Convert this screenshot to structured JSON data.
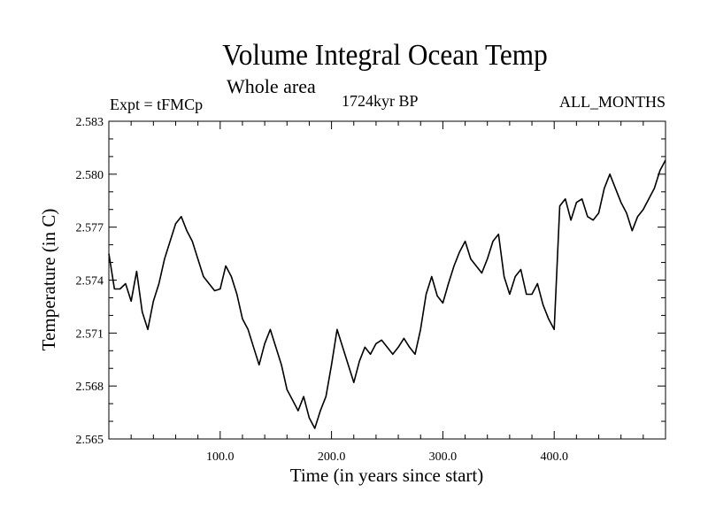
{
  "chart_data": {
    "type": "line",
    "title": "Volume Integral Ocean Temp",
    "subtitle": "Whole area",
    "left_label": "Expt = tFMCp",
    "center_label": "1724kyr BP",
    "right_label": "ALL_MONTHS",
    "xlabel": "Time (in years since start)",
    "ylabel": "Temperature (in C)",
    "xlim": [
      0,
      500
    ],
    "ylim": [
      2.565,
      2.583
    ],
    "x_ticks": [
      100,
      200,
      300,
      400
    ],
    "x_tick_labels": [
      "100.0",
      "200.0",
      "300.0",
      "400.0"
    ],
    "y_ticks": [
      2.565,
      2.568,
      2.571,
      2.574,
      2.577,
      2.58,
      2.583
    ],
    "y_tick_labels": [
      "2.565",
      "2.568",
      "2.571",
      "2.574",
      "2.577",
      "2.580",
      "2.583"
    ],
    "series": [
      {
        "name": "Volume Integral Ocean Temp",
        "x": [
          0,
          5,
          10,
          15,
          20,
          25,
          30,
          35,
          40,
          45,
          50,
          55,
          60,
          65,
          70,
          75,
          80,
          85,
          90,
          95,
          100,
          105,
          110,
          115,
          120,
          125,
          130,
          135,
          140,
          145,
          150,
          155,
          160,
          165,
          170,
          175,
          180,
          185,
          190,
          195,
          200,
          205,
          210,
          215,
          220,
          225,
          230,
          235,
          240,
          245,
          250,
          255,
          260,
          265,
          270,
          275,
          280,
          285,
          290,
          295,
          300,
          305,
          310,
          315,
          320,
          325,
          330,
          335,
          340,
          345,
          350,
          355,
          360,
          365,
          370,
          375,
          380,
          385,
          390,
          395,
          400,
          405,
          410,
          415,
          420,
          425,
          430,
          435,
          440,
          445,
          450,
          455,
          460,
          465,
          470,
          475,
          480,
          485,
          490,
          495,
          500
        ],
        "values": [
          2.5755,
          2.5735,
          2.5735,
          2.5738,
          2.5728,
          2.5745,
          2.5722,
          2.5712,
          2.5728,
          2.5738,
          2.5752,
          2.5762,
          2.5772,
          2.5776,
          2.5768,
          2.5762,
          2.5752,
          2.5742,
          2.5738,
          2.5734,
          2.5735,
          2.5748,
          2.5742,
          2.5732,
          2.5718,
          2.5712,
          2.5702,
          2.5692,
          2.5704,
          2.5712,
          2.5702,
          2.5692,
          2.5678,
          2.5672,
          2.5666,
          2.5674,
          2.5662,
          2.5656,
          2.5666,
          2.5674,
          2.5692,
          2.5712,
          2.5702,
          2.5692,
          2.5682,
          2.5694,
          2.5702,
          2.5698,
          2.5704,
          2.5706,
          2.5702,
          2.5698,
          2.5702,
          2.5707,
          2.5702,
          2.5698,
          2.5712,
          2.5732,
          2.5742,
          2.5731,
          2.5727,
          2.5738,
          2.5748,
          2.5756,
          2.5762,
          2.5752,
          2.5748,
          2.5744,
          2.5752,
          2.5762,
          2.5766,
          2.5742,
          2.5732,
          2.5742,
          2.5746,
          2.5732,
          2.5732,
          2.5738,
          2.5726,
          2.5718,
          2.5712,
          2.5782,
          2.5786,
          2.5774,
          2.5784,
          2.5786,
          2.5776,
          2.5774,
          2.5778,
          2.5792,
          2.58,
          2.5792,
          2.5784,
          2.5778,
          2.5768,
          2.5776,
          2.578,
          2.5786,
          2.5792,
          2.5802,
          2.5808
        ]
      }
    ]
  }
}
